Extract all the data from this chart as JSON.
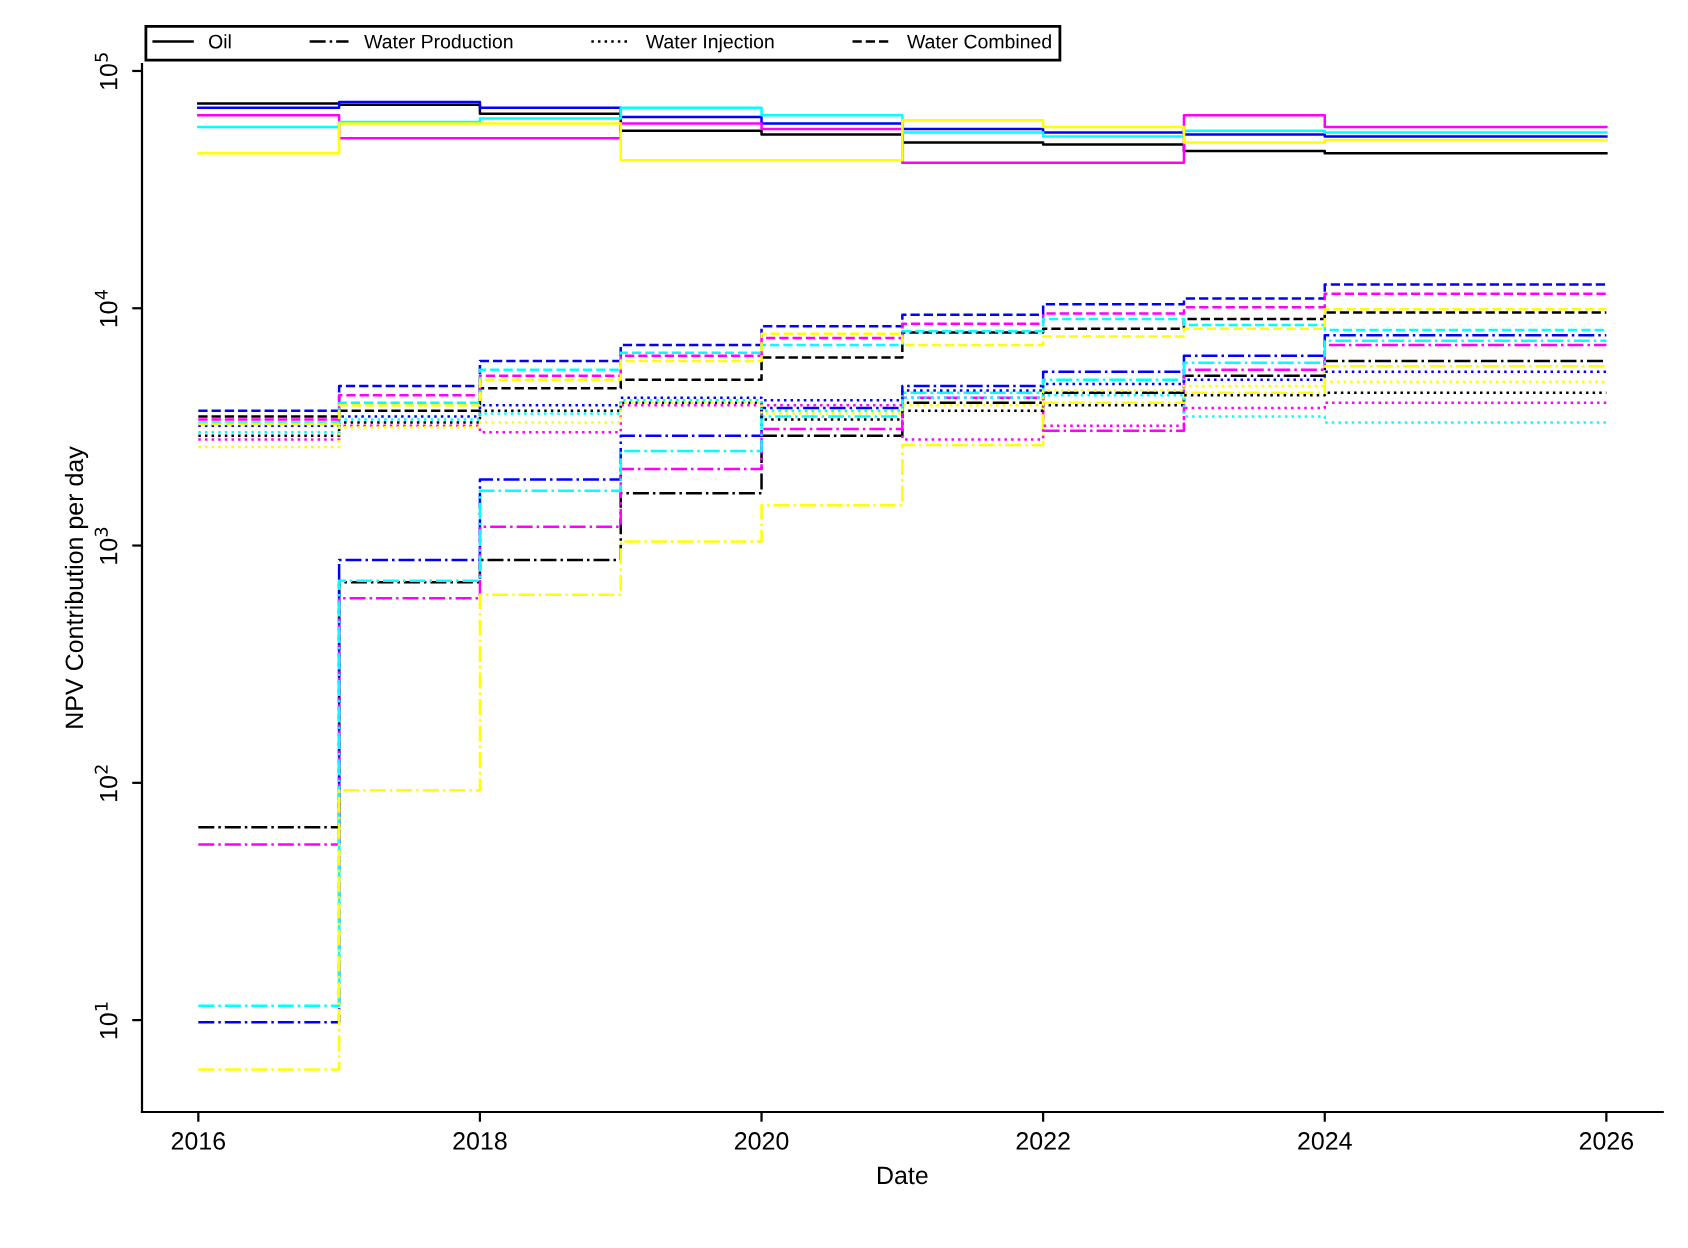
{
  "chart_data": {
    "type": "step",
    "xlabel": "Date",
    "ylabel": "NPV Contribution per day",
    "x": [
      2016,
      2017,
      2018,
      2019,
      2020,
      2021,
      2022,
      2023,
      2024,
      2026
    ],
    "xlim": [
      2015.6,
      2026.4
    ],
    "xticks": [
      2016,
      2018,
      2020,
      2022,
      2024,
      2026
    ],
    "log": "y",
    "ylim": [
      4.1,
      107000
    ],
    "yticks": [
      {
        "value": 10,
        "label": "10$^{1}$"
      },
      {
        "value": 100,
        "label": "10$^{2}$"
      },
      {
        "value": 1000,
        "label": "10$^{3}$"
      },
      {
        "value": 10000,
        "label": "10$^{4}$"
      },
      {
        "value": 100000,
        "label": "10$^{5}$"
      }
    ],
    "grid": false,
    "legend": "top left",
    "series": [
      {
        "name": "Oil",
        "color": "#000000",
        "line_style": "solid",
        "values": [
          73000,
          72000,
          66000,
          56000,
          54000,
          50000,
          49000,
          46000,
          45000,
          45000
        ]
      },
      {
        "color": "#0000ff",
        "line_style": "solid",
        "values": [
          70000,
          74000,
          70000,
          64000,
          60000,
          57000,
          55000,
          54000,
          53000,
          53000
        ]
      },
      {
        "color": "#ff00ff",
        "line_style": "solid",
        "values": [
          65000,
          52000,
          52000,
          60000,
          57000,
          41000,
          41000,
          65000,
          58000,
          58000
        ]
      },
      {
        "color": "#00ffff",
        "line_style": "solid",
        "values": [
          58000,
          61000,
          63000,
          70000,
          65000,
          55000,
          53000,
          56000,
          55000,
          55000
        ]
      },
      {
        "color": "#ffff00",
        "line_style": "solid",
        "values": [
          45000,
          60000,
          60000,
          42000,
          42000,
          62000,
          58000,
          50000,
          51000,
          51000
        ]
      },
      {
        "name": "Water Production",
        "color": "#000000",
        "line_style": "dashdot",
        "values": [
          65,
          700,
          870,
          1660,
          2900,
          4000,
          4400,
          5200,
          6000,
          6000
        ]
      },
      {
        "color": "#0000ff",
        "line_style": "dashdot",
        "values": [
          9.8,
          870,
          1900,
          2900,
          3800,
          4700,
          5400,
          6300,
          7700,
          7700
        ]
      },
      {
        "color": "#ff00ff",
        "line_style": "dashdot",
        "values": [
          55,
          600,
          1200,
          2100,
          3100,
          4200,
          3050,
          5500,
          7000,
          7000
        ]
      },
      {
        "color": "#00ffff",
        "line_style": "dashdot",
        "values": [
          11.5,
          710,
          1700,
          2500,
          3500,
          4400,
          5000,
          5900,
          7300,
          7300
        ]
      },
      {
        "color": "#ffff00",
        "line_style": "dashdot",
        "values": [
          6.2,
          93,
          620,
          1040,
          1480,
          2650,
          4000,
          4400,
          5700,
          5700
        ]
      },
      {
        "name": "Water Injection",
        "color": "#000000",
        "line_style": "dotted",
        "values": [
          2900,
          3300,
          3700,
          4000,
          3400,
          3700,
          3900,
          4300,
          4400,
          4400
        ]
      },
      {
        "color": "#0000ff",
        "line_style": "dotted",
        "values": [
          3200,
          3500,
          3900,
          4200,
          4100,
          4500,
          4800,
          5000,
          5400,
          5400
        ]
      },
      {
        "color": "#ff00ff",
        "line_style": "dotted",
        "values": [
          2800,
          3200,
          3000,
          3900,
          3900,
          2800,
          3200,
          3800,
          4000,
          4000
        ]
      },
      {
        "color": "#00ffff",
        "line_style": "dotted",
        "values": [
          3000,
          3400,
          3600,
          4100,
          3700,
          4200,
          4300,
          3500,
          3300,
          3300
        ]
      },
      {
        "color": "#ffff00",
        "line_style": "dotted",
        "values": [
          2600,
          3150,
          3300,
          4000,
          3600,
          3900,
          4500,
          4700,
          4900,
          4900
        ]
      },
      {
        "name": "Water Combined",
        "color": "#000000",
        "line_style": "dashed",
        "values": [
          3500,
          3700,
          4600,
          5000,
          6200,
          7900,
          8200,
          9000,
          9600,
          9600
        ]
      },
      {
        "color": "#0000ff",
        "line_style": "dashed",
        "values": [
          3700,
          4700,
          6000,
          7000,
          8400,
          9400,
          10400,
          11000,
          12600,
          12600
        ]
      },
      {
        "color": "#ff00ff",
        "line_style": "dashed",
        "values": [
          3400,
          4300,
          5200,
          6300,
          7500,
          8600,
          9500,
          10100,
          11500,
          11500
        ]
      },
      {
        "color": "#00ffff",
        "line_style": "dashed",
        "values": [
          3300,
          4000,
          5500,
          6500,
          7000,
          8000,
          9000,
          8500,
          8100,
          8100
        ]
      },
      {
        "color": "#ffff00",
        "line_style": "dashed",
        "values": [
          3250,
          3900,
          5000,
          6000,
          7800,
          7000,
          7600,
          8200,
          9900,
          9900
        ]
      }
    ]
  }
}
